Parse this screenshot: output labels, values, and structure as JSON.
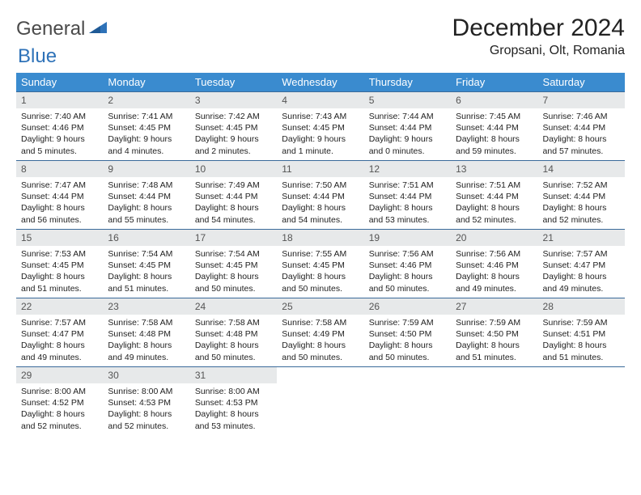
{
  "brand": {
    "part1": "General",
    "part2": "Blue"
  },
  "title": "December 2024",
  "location": "Gropsani, Olt, Romania",
  "colors": {
    "header_bg": "#3a8bcf",
    "header_text": "#ffffff",
    "row_divider": "#3a6a9a",
    "daynum_bg": "#e7e9ea",
    "daynum_text": "#555555",
    "body_text": "#222222",
    "brand_gray": "#4a4a4a",
    "brand_blue": "#2e72b8",
    "page_bg": "#ffffff"
  },
  "weekdays": [
    "Sunday",
    "Monday",
    "Tuesday",
    "Wednesday",
    "Thursday",
    "Friday",
    "Saturday"
  ],
  "days": {
    "1": {
      "sunrise": "Sunrise: 7:40 AM",
      "sunset": "Sunset: 4:46 PM",
      "daylight1": "Daylight: 9 hours",
      "daylight2": "and 5 minutes."
    },
    "2": {
      "sunrise": "Sunrise: 7:41 AM",
      "sunset": "Sunset: 4:45 PM",
      "daylight1": "Daylight: 9 hours",
      "daylight2": "and 4 minutes."
    },
    "3": {
      "sunrise": "Sunrise: 7:42 AM",
      "sunset": "Sunset: 4:45 PM",
      "daylight1": "Daylight: 9 hours",
      "daylight2": "and 2 minutes."
    },
    "4": {
      "sunrise": "Sunrise: 7:43 AM",
      "sunset": "Sunset: 4:45 PM",
      "daylight1": "Daylight: 9 hours",
      "daylight2": "and 1 minute."
    },
    "5": {
      "sunrise": "Sunrise: 7:44 AM",
      "sunset": "Sunset: 4:44 PM",
      "daylight1": "Daylight: 9 hours",
      "daylight2": "and 0 minutes."
    },
    "6": {
      "sunrise": "Sunrise: 7:45 AM",
      "sunset": "Sunset: 4:44 PM",
      "daylight1": "Daylight: 8 hours",
      "daylight2": "and 59 minutes."
    },
    "7": {
      "sunrise": "Sunrise: 7:46 AM",
      "sunset": "Sunset: 4:44 PM",
      "daylight1": "Daylight: 8 hours",
      "daylight2": "and 57 minutes."
    },
    "8": {
      "sunrise": "Sunrise: 7:47 AM",
      "sunset": "Sunset: 4:44 PM",
      "daylight1": "Daylight: 8 hours",
      "daylight2": "and 56 minutes."
    },
    "9": {
      "sunrise": "Sunrise: 7:48 AM",
      "sunset": "Sunset: 4:44 PM",
      "daylight1": "Daylight: 8 hours",
      "daylight2": "and 55 minutes."
    },
    "10": {
      "sunrise": "Sunrise: 7:49 AM",
      "sunset": "Sunset: 4:44 PM",
      "daylight1": "Daylight: 8 hours",
      "daylight2": "and 54 minutes."
    },
    "11": {
      "sunrise": "Sunrise: 7:50 AM",
      "sunset": "Sunset: 4:44 PM",
      "daylight1": "Daylight: 8 hours",
      "daylight2": "and 54 minutes."
    },
    "12": {
      "sunrise": "Sunrise: 7:51 AM",
      "sunset": "Sunset: 4:44 PM",
      "daylight1": "Daylight: 8 hours",
      "daylight2": "and 53 minutes."
    },
    "13": {
      "sunrise": "Sunrise: 7:51 AM",
      "sunset": "Sunset: 4:44 PM",
      "daylight1": "Daylight: 8 hours",
      "daylight2": "and 52 minutes."
    },
    "14": {
      "sunrise": "Sunrise: 7:52 AM",
      "sunset": "Sunset: 4:44 PM",
      "daylight1": "Daylight: 8 hours",
      "daylight2": "and 52 minutes."
    },
    "15": {
      "sunrise": "Sunrise: 7:53 AM",
      "sunset": "Sunset: 4:45 PM",
      "daylight1": "Daylight: 8 hours",
      "daylight2": "and 51 minutes."
    },
    "16": {
      "sunrise": "Sunrise: 7:54 AM",
      "sunset": "Sunset: 4:45 PM",
      "daylight1": "Daylight: 8 hours",
      "daylight2": "and 51 minutes."
    },
    "17": {
      "sunrise": "Sunrise: 7:54 AM",
      "sunset": "Sunset: 4:45 PM",
      "daylight1": "Daylight: 8 hours",
      "daylight2": "and 50 minutes."
    },
    "18": {
      "sunrise": "Sunrise: 7:55 AM",
      "sunset": "Sunset: 4:45 PM",
      "daylight1": "Daylight: 8 hours",
      "daylight2": "and 50 minutes."
    },
    "19": {
      "sunrise": "Sunrise: 7:56 AM",
      "sunset": "Sunset: 4:46 PM",
      "daylight1": "Daylight: 8 hours",
      "daylight2": "and 50 minutes."
    },
    "20": {
      "sunrise": "Sunrise: 7:56 AM",
      "sunset": "Sunset: 4:46 PM",
      "daylight1": "Daylight: 8 hours",
      "daylight2": "and 49 minutes."
    },
    "21": {
      "sunrise": "Sunrise: 7:57 AM",
      "sunset": "Sunset: 4:47 PM",
      "daylight1": "Daylight: 8 hours",
      "daylight2": "and 49 minutes."
    },
    "22": {
      "sunrise": "Sunrise: 7:57 AM",
      "sunset": "Sunset: 4:47 PM",
      "daylight1": "Daylight: 8 hours",
      "daylight2": "and 49 minutes."
    },
    "23": {
      "sunrise": "Sunrise: 7:58 AM",
      "sunset": "Sunset: 4:48 PM",
      "daylight1": "Daylight: 8 hours",
      "daylight2": "and 49 minutes."
    },
    "24": {
      "sunrise": "Sunrise: 7:58 AM",
      "sunset": "Sunset: 4:48 PM",
      "daylight1": "Daylight: 8 hours",
      "daylight2": "and 50 minutes."
    },
    "25": {
      "sunrise": "Sunrise: 7:58 AM",
      "sunset": "Sunset: 4:49 PM",
      "daylight1": "Daylight: 8 hours",
      "daylight2": "and 50 minutes."
    },
    "26": {
      "sunrise": "Sunrise: 7:59 AM",
      "sunset": "Sunset: 4:50 PM",
      "daylight1": "Daylight: 8 hours",
      "daylight2": "and 50 minutes."
    },
    "27": {
      "sunrise": "Sunrise: 7:59 AM",
      "sunset": "Sunset: 4:50 PM",
      "daylight1": "Daylight: 8 hours",
      "daylight2": "and 51 minutes."
    },
    "28": {
      "sunrise": "Sunrise: 7:59 AM",
      "sunset": "Sunset: 4:51 PM",
      "daylight1": "Daylight: 8 hours",
      "daylight2": "and 51 minutes."
    },
    "29": {
      "sunrise": "Sunrise: 8:00 AM",
      "sunset": "Sunset: 4:52 PM",
      "daylight1": "Daylight: 8 hours",
      "daylight2": "and 52 minutes."
    },
    "30": {
      "sunrise": "Sunrise: 8:00 AM",
      "sunset": "Sunset: 4:53 PM",
      "daylight1": "Daylight: 8 hours",
      "daylight2": "and 52 minutes."
    },
    "31": {
      "sunrise": "Sunrise: 8:00 AM",
      "sunset": "Sunset: 4:53 PM",
      "daylight1": "Daylight: 8 hours",
      "daylight2": "and 53 minutes."
    }
  },
  "grid": [
    [
      1,
      2,
      3,
      4,
      5,
      6,
      7
    ],
    [
      8,
      9,
      10,
      11,
      12,
      13,
      14
    ],
    [
      15,
      16,
      17,
      18,
      19,
      20,
      21
    ],
    [
      22,
      23,
      24,
      25,
      26,
      27,
      28
    ],
    [
      29,
      30,
      31,
      null,
      null,
      null,
      null
    ]
  ]
}
